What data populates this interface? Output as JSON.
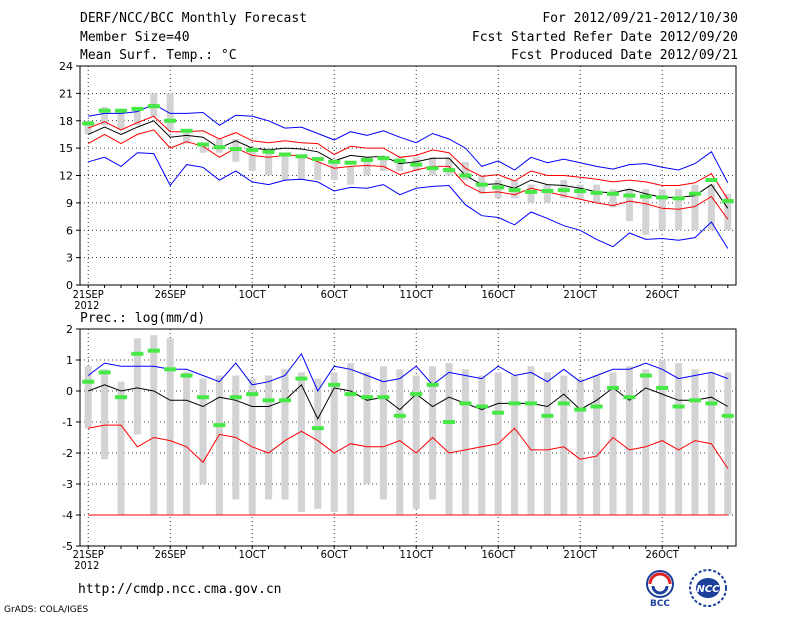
{
  "header": {
    "title": "DERF/NCC/BCC Monthly Forecast",
    "member_size": "Member Size=40",
    "variable": "Mean Surf. Temp.: °C",
    "period": "For 2012/09/21-2012/10/30",
    "fcst_started": "Fcst Started Refer Date 2012/09/20",
    "fcst_produced": "Fcst Produced Date 2012/09/21"
  },
  "footer": {
    "url": "http://cmdp.ncc.cma.gov.cn",
    "credit": "GrADS: COLA/IGES",
    "logo_left_text": "BCC",
    "logo_right_text": "NCC"
  },
  "colors": {
    "box": "#d3d3d6",
    "marker": "#46e846",
    "envelope": "#0000ff",
    "quartile": "#ff0000",
    "mean": "#000000"
  },
  "chart_data": [
    {
      "type": "line",
      "title": "Mean Surf. Temp.: °C",
      "ylim": [
        0,
        24
      ],
      "yticks": [
        0,
        3,
        6,
        9,
        12,
        15,
        18,
        21,
        24
      ],
      "xlabels": [
        {
          "day": 0,
          "label": "21SEP"
        },
        {
          "day": 0,
          "label": "2012",
          "row": 2
        },
        {
          "day": 5,
          "label": "26SEP"
        },
        {
          "day": 10,
          "label": "1OCT"
        },
        {
          "day": 15,
          "label": "6OCT"
        },
        {
          "day": 20,
          "label": "11OCT"
        },
        {
          "day": 25,
          "label": "16OCT"
        },
        {
          "day": 30,
          "label": "21OCT"
        },
        {
          "day": 35,
          "label": "26OCT"
        }
      ],
      "days": 40,
      "box_low": [
        16.5,
        17.5,
        17,
        17.5,
        18.5,
        17,
        15.5,
        14.5,
        14.5,
        13.5,
        12.5,
        12,
        11.5,
        11.5,
        11.5,
        11.5,
        11,
        12,
        12.5,
        12.5,
        12.5,
        12,
        12,
        11.5,
        10,
        9.5,
        9.5,
        9,
        9,
        9.5,
        9.5,
        9,
        8.5,
        7,
        5.5,
        6,
        6,
        6,
        6,
        6
      ],
      "box_high": [
        18,
        19.5,
        19,
        19.5,
        21,
        21,
        17,
        15.5,
        16,
        16,
        15,
        15,
        14.5,
        14,
        13.5,
        13.5,
        13,
        14,
        14,
        14,
        14,
        14,
        14,
        13.5,
        12,
        11.5,
        11.5,
        11,
        11,
        11.5,
        11,
        11,
        10.5,
        10.5,
        10.5,
        10.5,
        10.5,
        11,
        11,
        10
      ],
      "marker": [
        17.7,
        19.1,
        19.1,
        19.3,
        19.6,
        18.0,
        16.9,
        15.4,
        15.1,
        14.9,
        14.8,
        14.6,
        14.3,
        14.1,
        13.8,
        13.5,
        13.4,
        13.7,
        13.9,
        13.6,
        13.2,
        12.8,
        12.6,
        12.0,
        11.0,
        10.7,
        10.4,
        10.2,
        10.3,
        10.4,
        10.3,
        10.1,
        10.0,
        9.8,
        9.7,
        9.6,
        9.5,
        10.0,
        11.5,
        9.2
      ],
      "series": [
        {
          "name": "max",
          "color": "#0000ff",
          "values": [
            18.5,
            18.8,
            18.8,
            19.0,
            19.8,
            18.8,
            18.8,
            18.9,
            17.5,
            18.6,
            18.5,
            18.0,
            17.2,
            17.3,
            16.6,
            15.9,
            16.8,
            16.4,
            16.9,
            16.2,
            15.6,
            16.6,
            16.0,
            15.0,
            13.0,
            13.6,
            12.6,
            14.0,
            13.4,
            13.8,
            13.4,
            13.0,
            12.7,
            13.2,
            13.3,
            12.9,
            12.6,
            13.3,
            14.6,
            11.2
          ]
        },
        {
          "name": "upper",
          "color": "#ff0000",
          "values": [
            17.2,
            17.9,
            17.0,
            17.8,
            18.5,
            16.8,
            16.8,
            16.9,
            16.0,
            16.7,
            15.8,
            15.6,
            15.8,
            15.6,
            15.5,
            14.3,
            15.2,
            15.0,
            15.0,
            14.0,
            14.2,
            14.8,
            14.5,
            12.8,
            11.9,
            12.1,
            11.4,
            12.5,
            12.0,
            12.0,
            11.8,
            11.6,
            11.3,
            11.5,
            11.3,
            10.9,
            10.9,
            11.2,
            12.2,
            9.4
          ]
        },
        {
          "name": "mean",
          "color": "#000000",
          "values": [
            16.5,
            17.3,
            16.5,
            17.3,
            18.0,
            16.2,
            16.4,
            16.2,
            15.0,
            15.8,
            15.0,
            14.8,
            15.0,
            14.9,
            14.6,
            13.6,
            14.2,
            14.0,
            14.1,
            13.3,
            13.5,
            13.9,
            13.9,
            12.0,
            11.0,
            11.1,
            10.6,
            11.5,
            11.0,
            10.9,
            10.6,
            10.2,
            10.1,
            10.5,
            10.0,
            9.6,
            9.6,
            9.8,
            11.0,
            8.4
          ]
        },
        {
          "name": "lower",
          "color": "#ff0000",
          "values": [
            15.5,
            16.5,
            15.5,
            16.5,
            17.0,
            15.0,
            15.7,
            15.2,
            14.0,
            15.0,
            14.2,
            14.0,
            14.2,
            14.2,
            13.5,
            12.8,
            13.0,
            13.1,
            13.0,
            12.1,
            12.6,
            13.0,
            13.0,
            11.0,
            10.1,
            10.2,
            9.9,
            10.6,
            10.2,
            9.8,
            9.4,
            9.0,
            8.7,
            9.2,
            8.9,
            8.4,
            8.3,
            8.6,
            9.7,
            7.2
          ]
        },
        {
          "name": "min",
          "color": "#0000ff",
          "values": [
            13.5,
            14.0,
            13.0,
            14.5,
            14.4,
            10.9,
            13.2,
            12.9,
            11.5,
            12.5,
            11.3,
            11.0,
            11.5,
            11.6,
            11.3,
            10.3,
            10.7,
            10.6,
            11.0,
            9.9,
            10.6,
            10.8,
            10.9,
            8.8,
            7.6,
            7.4,
            6.6,
            8.0,
            7.3,
            6.5,
            6.0,
            5.0,
            4.2,
            5.7,
            5.0,
            5.1,
            4.9,
            5.2,
            6.9,
            4.0
          ]
        }
      ]
    },
    {
      "type": "line",
      "title": "Prec.: log(mm/d)",
      "ylim": [
        -5,
        2
      ],
      "yticks": [
        -5,
        -4,
        -3,
        -2,
        -1,
        0,
        1,
        2
      ],
      "xlabels": [
        {
          "day": 0,
          "label": "21SEP"
        },
        {
          "day": 0,
          "label": "2012",
          "row": 2
        },
        {
          "day": 5,
          "label": "26SEP"
        },
        {
          "day": 10,
          "label": "1OCT"
        },
        {
          "day": 15,
          "label": "6OCT"
        },
        {
          "day": 20,
          "label": "11OCT"
        },
        {
          "day": 25,
          "label": "16OCT"
        },
        {
          "day": 30,
          "label": "21OCT"
        },
        {
          "day": 35,
          "label": "26OCT"
        }
      ],
      "days": 40,
      "box_low": [
        -1.2,
        -2.2,
        -4,
        -1.4,
        -4,
        -4,
        -4,
        -3,
        -4,
        -3.5,
        -4,
        -3.5,
        -3.5,
        -3.9,
        -3.8,
        -3.9,
        -4,
        -3,
        -3.5,
        -4,
        -3.8,
        -3.5,
        -4,
        -4,
        -4,
        -4,
        -4,
        -4,
        -4,
        -4,
        -4,
        -4,
        -4,
        -4,
        -4,
        -4,
        -4,
        -4,
        -4,
        -4
      ],
      "box_high": [
        0.8,
        0.7,
        0.3,
        1.7,
        1.8,
        1.7,
        0.6,
        0.4,
        0.5,
        0.5,
        0.4,
        0.5,
        0.7,
        0.6,
        0.4,
        0.6,
        0.9,
        0.6,
        0.8,
        0.7,
        0.5,
        0.8,
        0.9,
        0.7,
        0.5,
        0.6,
        0.5,
        0.8,
        0.6,
        0.5,
        0.4,
        0.5,
        0.6,
        0.8,
        0.7,
        1.0,
        0.9,
        0.7,
        0.6,
        0.6
      ],
      "marker": [
        0.3,
        0.6,
        -0.2,
        1.2,
        1.3,
        0.7,
        0.5,
        -0.2,
        -1.1,
        -0.2,
        -0.1,
        -0.3,
        -0.3,
        0.4,
        -1.2,
        0.2,
        -0.1,
        -0.2,
        -0.2,
        -0.8,
        -0.1,
        0.2,
        -1.0,
        -0.4,
        -0.5,
        -0.7,
        -0.4,
        -0.4,
        -0.8,
        -0.4,
        -0.6,
        -0.5,
        0.1,
        -0.2,
        0.5,
        0.1,
        -0.5,
        -0.3,
        -0.4,
        -0.8
      ],
      "series": [
        {
          "name": "upper",
          "color": "#0000ff",
          "values": [
            0.5,
            0.9,
            0.8,
            0.8,
            0.8,
            0.7,
            0.7,
            0.5,
            0.3,
            0.9,
            0.2,
            0.3,
            0.5,
            1.2,
            0.0,
            0.8,
            0.7,
            0.5,
            0.3,
            0.4,
            0.8,
            0.2,
            0.6,
            0.5,
            0.4,
            0.8,
            0.5,
            0.6,
            0.3,
            0.7,
            0.3,
            0.5,
            0.7,
            0.7,
            0.9,
            0.7,
            0.4,
            0.5,
            0.6,
            0.4
          ]
        },
        {
          "name": "mean",
          "color": "#000000",
          "values": [
            0.0,
            0.2,
            0.0,
            0.1,
            0.0,
            -0.3,
            -0.3,
            -0.5,
            -0.2,
            -0.3,
            -0.5,
            -0.5,
            -0.3,
            0.2,
            -0.9,
            0.1,
            0.0,
            -0.3,
            -0.2,
            -0.6,
            -0.1,
            -0.5,
            -0.2,
            -0.4,
            -0.6,
            -0.4,
            -0.4,
            -0.4,
            -0.5,
            -0.1,
            -0.6,
            -0.3,
            0.1,
            -0.3,
            0.1,
            -0.1,
            -0.3,
            -0.3,
            -0.2,
            -0.5
          ]
        },
        {
          "name": "lower",
          "color": "#ff0000",
          "values": [
            -1.2,
            -1.1,
            -1.1,
            -1.8,
            -1.5,
            -1.6,
            -1.8,
            -2.3,
            -1.4,
            -1.5,
            -1.8,
            -2.0,
            -1.6,
            -1.3,
            -1.6,
            -2.0,
            -1.7,
            -1.8,
            -1.8,
            -1.6,
            -2.0,
            -1.5,
            -2.0,
            -1.9,
            -1.8,
            -1.7,
            -1.2,
            -1.9,
            -1.9,
            -1.8,
            -2.2,
            -2.1,
            -1.5,
            -1.9,
            -1.8,
            -1.6,
            -1.9,
            -1.6,
            -1.7,
            -2.5
          ]
        },
        {
          "name": "min",
          "color": "#ff0000",
          "values": [
            -4,
            -4,
            -4,
            -4,
            -4,
            -4,
            -4,
            -4,
            -4,
            -4,
            -4,
            -4,
            -4,
            -4,
            -4,
            -4,
            -4,
            -4,
            -4,
            -4,
            -4,
            -4,
            -4,
            -4,
            -4,
            -4,
            -4,
            -4,
            -4,
            -4,
            -4,
            -4,
            -4,
            -4,
            -4,
            -4,
            -4,
            -4,
            -4,
            -4
          ]
        }
      ]
    }
  ]
}
